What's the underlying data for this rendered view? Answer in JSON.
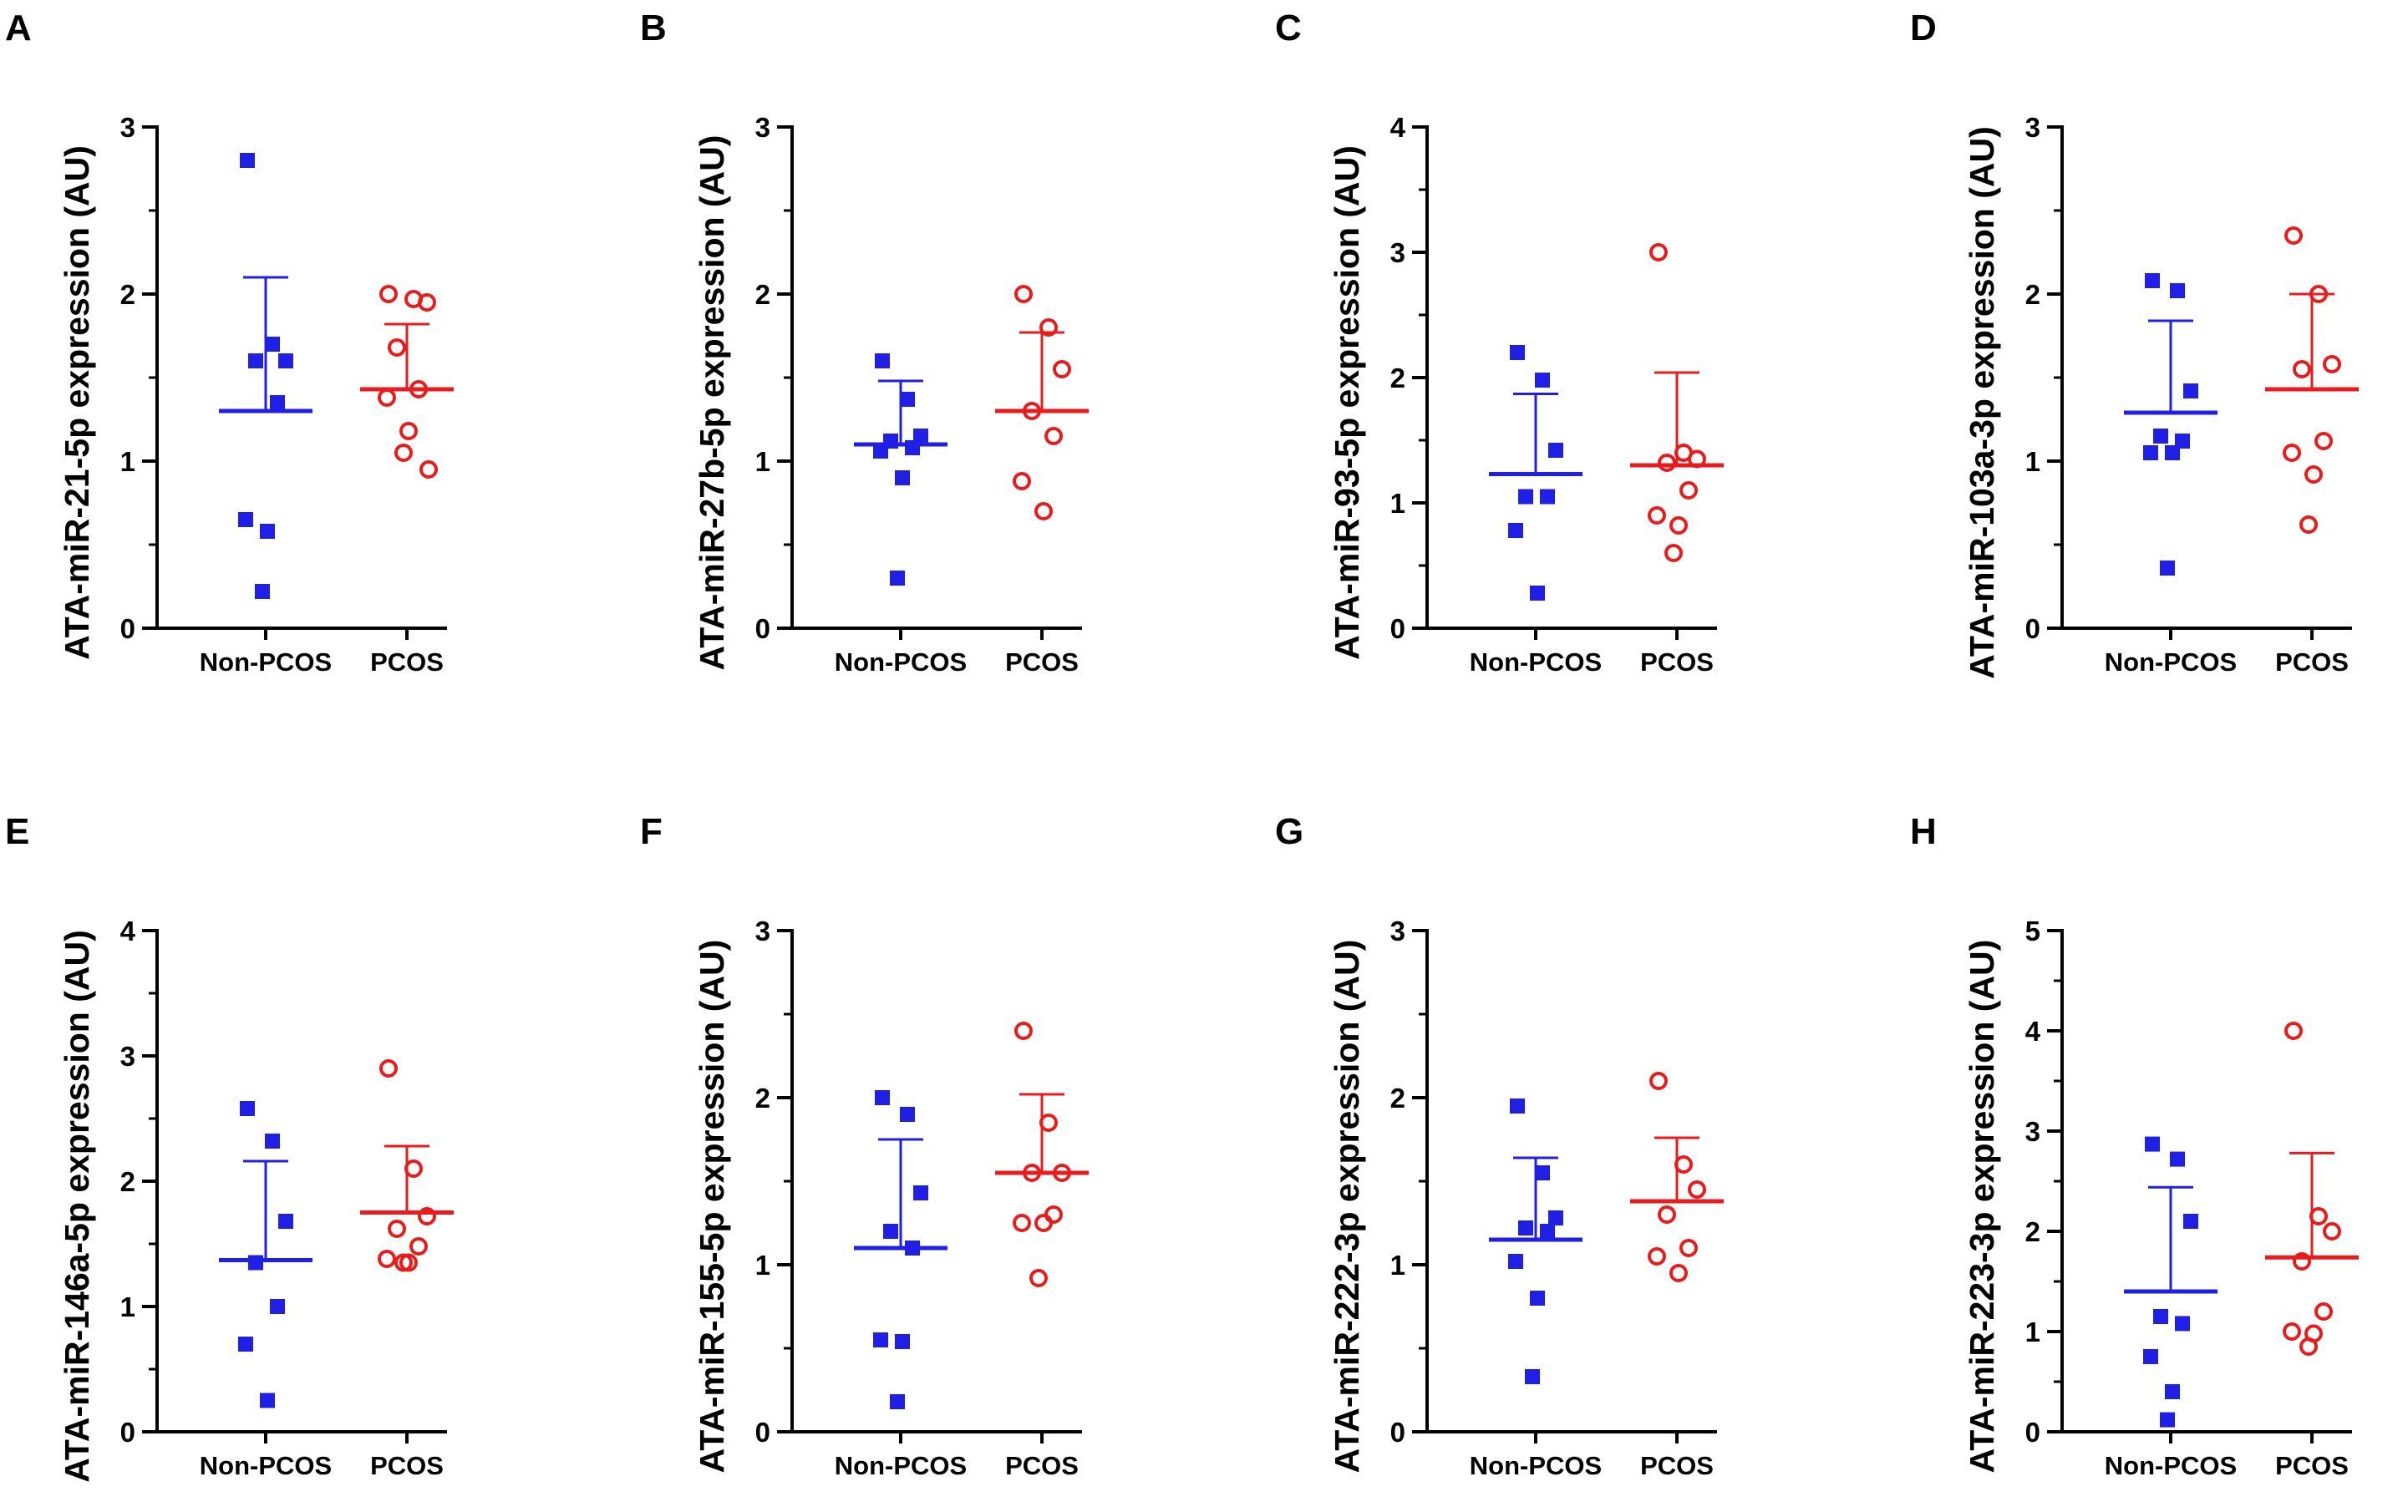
{
  "figure": {
    "colors": {
      "non_pcos": "#1f1fe6",
      "pcos": "#e81c1c",
      "axis": "#000000"
    },
    "categories": [
      "Non-PCOS",
      "PCOS"
    ]
  },
  "chart_data": [
    {
      "type": "scatter",
      "panel": "A",
      "ylabel": "ATA-miR-21-5p expression (AU)",
      "ylim": [
        0,
        3
      ],
      "yticks": [
        0,
        1,
        2,
        3
      ],
      "categories": [
        "Non-PCOS",
        "PCOS"
      ],
      "series": [
        {
          "name": "Non-PCOS",
          "marker": "filled-square",
          "values": [
            2.8,
            1.7,
            1.6,
            1.6,
            1.35,
            0.65,
            0.58,
            0.22
          ],
          "mean": 1.3,
          "sd_upper": 2.1
        },
        {
          "name": "PCOS",
          "marker": "open-circle",
          "values": [
            2.0,
            1.97,
            1.95,
            1.68,
            1.43,
            1.38,
            1.18,
            1.05,
            0.95
          ],
          "mean": 1.43,
          "sd_upper": 1.82
        }
      ]
    },
    {
      "type": "scatter",
      "panel": "B",
      "ylabel": "ATA-miR-27b-5p expression (AU)",
      "ylim": [
        0,
        3
      ],
      "yticks": [
        0,
        1,
        2,
        3
      ],
      "categories": [
        "Non-PCOS",
        "PCOS"
      ],
      "series": [
        {
          "name": "Non-PCOS",
          "marker": "filled-square",
          "values": [
            1.6,
            1.37,
            1.15,
            1.12,
            1.08,
            1.06,
            0.9,
            0.3
          ],
          "mean": 1.1,
          "sd_upper": 1.48
        },
        {
          "name": "PCOS",
          "marker": "open-circle",
          "values": [
            2.0,
            1.8,
            1.55,
            1.3,
            1.15,
            0.88,
            0.7
          ],
          "mean": 1.3,
          "sd_upper": 1.77
        }
      ]
    },
    {
      "type": "scatter",
      "panel": "C",
      "ylabel": "ATA-miR-93-5p expression (AU)",
      "ylim": [
        0,
        4
      ],
      "yticks": [
        0,
        1,
        2,
        3,
        4
      ],
      "categories": [
        "Non-PCOS",
        "PCOS"
      ],
      "series": [
        {
          "name": "Non-PCOS",
          "marker": "filled-square",
          "values": [
            2.2,
            1.98,
            1.42,
            1.05,
            1.05,
            0.78,
            0.28
          ],
          "mean": 1.23,
          "sd_upper": 1.87
        },
        {
          "name": "PCOS",
          "marker": "open-circle",
          "values": [
            3.0,
            1.4,
            1.35,
            1.32,
            1.1,
            0.9,
            0.82,
            0.6
          ],
          "mean": 1.3,
          "sd_upper": 2.04
        }
      ]
    },
    {
      "type": "scatter",
      "panel": "D",
      "ylabel": "ATA-miR-103a-3p expression (AU)",
      "ylim": [
        0,
        3
      ],
      "yticks": [
        0,
        1,
        2,
        3
      ],
      "categories": [
        "Non-PCOS",
        "PCOS"
      ],
      "series": [
        {
          "name": "Non-PCOS",
          "marker": "filled-square",
          "values": [
            2.08,
            2.02,
            1.42,
            1.15,
            1.12,
            1.05,
            1.05,
            0.36
          ],
          "mean": 1.29,
          "sd_upper": 1.84
        },
        {
          "name": "PCOS",
          "marker": "open-circle",
          "values": [
            2.35,
            2.0,
            1.58,
            1.55,
            1.12,
            1.05,
            0.92,
            0.62
          ],
          "mean": 1.43,
          "sd_upper": 2.0
        }
      ]
    },
    {
      "type": "scatter",
      "panel": "E",
      "ylabel": "ATA-miR-146a-5p expression (AU)",
      "ylim": [
        0,
        4
      ],
      "yticks": [
        0,
        1,
        2,
        3,
        4
      ],
      "categories": [
        "Non-PCOS",
        "PCOS"
      ],
      "series": [
        {
          "name": "Non-PCOS",
          "marker": "filled-square",
          "values": [
            2.58,
            2.32,
            1.68,
            1.35,
            1.0,
            0.7,
            0.25
          ],
          "mean": 1.37,
          "sd_upper": 2.16
        },
        {
          "name": "PCOS",
          "marker": "open-circle",
          "values": [
            2.9,
            2.1,
            1.72,
            1.62,
            1.48,
            1.38,
            1.35,
            1.35
          ],
          "mean": 1.75,
          "sd_upper": 2.28
        }
      ]
    },
    {
      "type": "scatter",
      "panel": "F",
      "ylabel": "ATA-miR-155-5p expression (AU)",
      "ylim": [
        0,
        3
      ],
      "yticks": [
        0,
        1,
        2,
        3
      ],
      "categories": [
        "Non-PCOS",
        "PCOS"
      ],
      "series": [
        {
          "name": "Non-PCOS",
          "marker": "filled-square",
          "values": [
            2.0,
            1.9,
            1.43,
            1.2,
            1.1,
            0.55,
            0.54,
            0.18
          ],
          "mean": 1.1,
          "sd_upper": 1.75
        },
        {
          "name": "PCOS",
          "marker": "open-circle",
          "values": [
            2.4,
            1.85,
            1.55,
            1.55,
            1.3,
            1.25,
            1.25,
            0.92
          ],
          "mean": 1.55,
          "sd_upper": 2.02
        }
      ]
    },
    {
      "type": "scatter",
      "panel": "G",
      "ylabel": "ATA-miR-222-3p expression (AU)",
      "ylim": [
        0,
        3
      ],
      "yticks": [
        0,
        1,
        2,
        3
      ],
      "categories": [
        "Non-PCOS",
        "PCOS"
      ],
      "series": [
        {
          "name": "Non-PCOS",
          "marker": "filled-square",
          "values": [
            1.95,
            1.55,
            1.28,
            1.22,
            1.2,
            1.02,
            0.8,
            0.33
          ],
          "mean": 1.15,
          "sd_upper": 1.64
        },
        {
          "name": "PCOS",
          "marker": "open-circle",
          "values": [
            2.1,
            1.6,
            1.45,
            1.3,
            1.1,
            1.05,
            0.95
          ],
          "mean": 1.38,
          "sd_upper": 1.76
        }
      ]
    },
    {
      "type": "scatter",
      "panel": "H",
      "ylabel": "ATA-miR-223-3p expression (AU)",
      "ylim": [
        0,
        5
      ],
      "yticks": [
        0,
        1,
        2,
        3,
        4,
        5
      ],
      "categories": [
        "Non-PCOS",
        "PCOS"
      ],
      "series": [
        {
          "name": "Non-PCOS",
          "marker": "filled-square",
          "values": [
            2.87,
            2.72,
            2.1,
            1.15,
            1.08,
            0.75,
            0.4,
            0.12
          ],
          "mean": 1.4,
          "sd_upper": 2.44
        },
        {
          "name": "PCOS",
          "marker": "open-circle",
          "values": [
            4.0,
            2.15,
            2.0,
            1.7,
            1.2,
            1.0,
            0.98,
            0.85
          ],
          "mean": 1.74,
          "sd_upper": 2.78
        }
      ]
    }
  ]
}
